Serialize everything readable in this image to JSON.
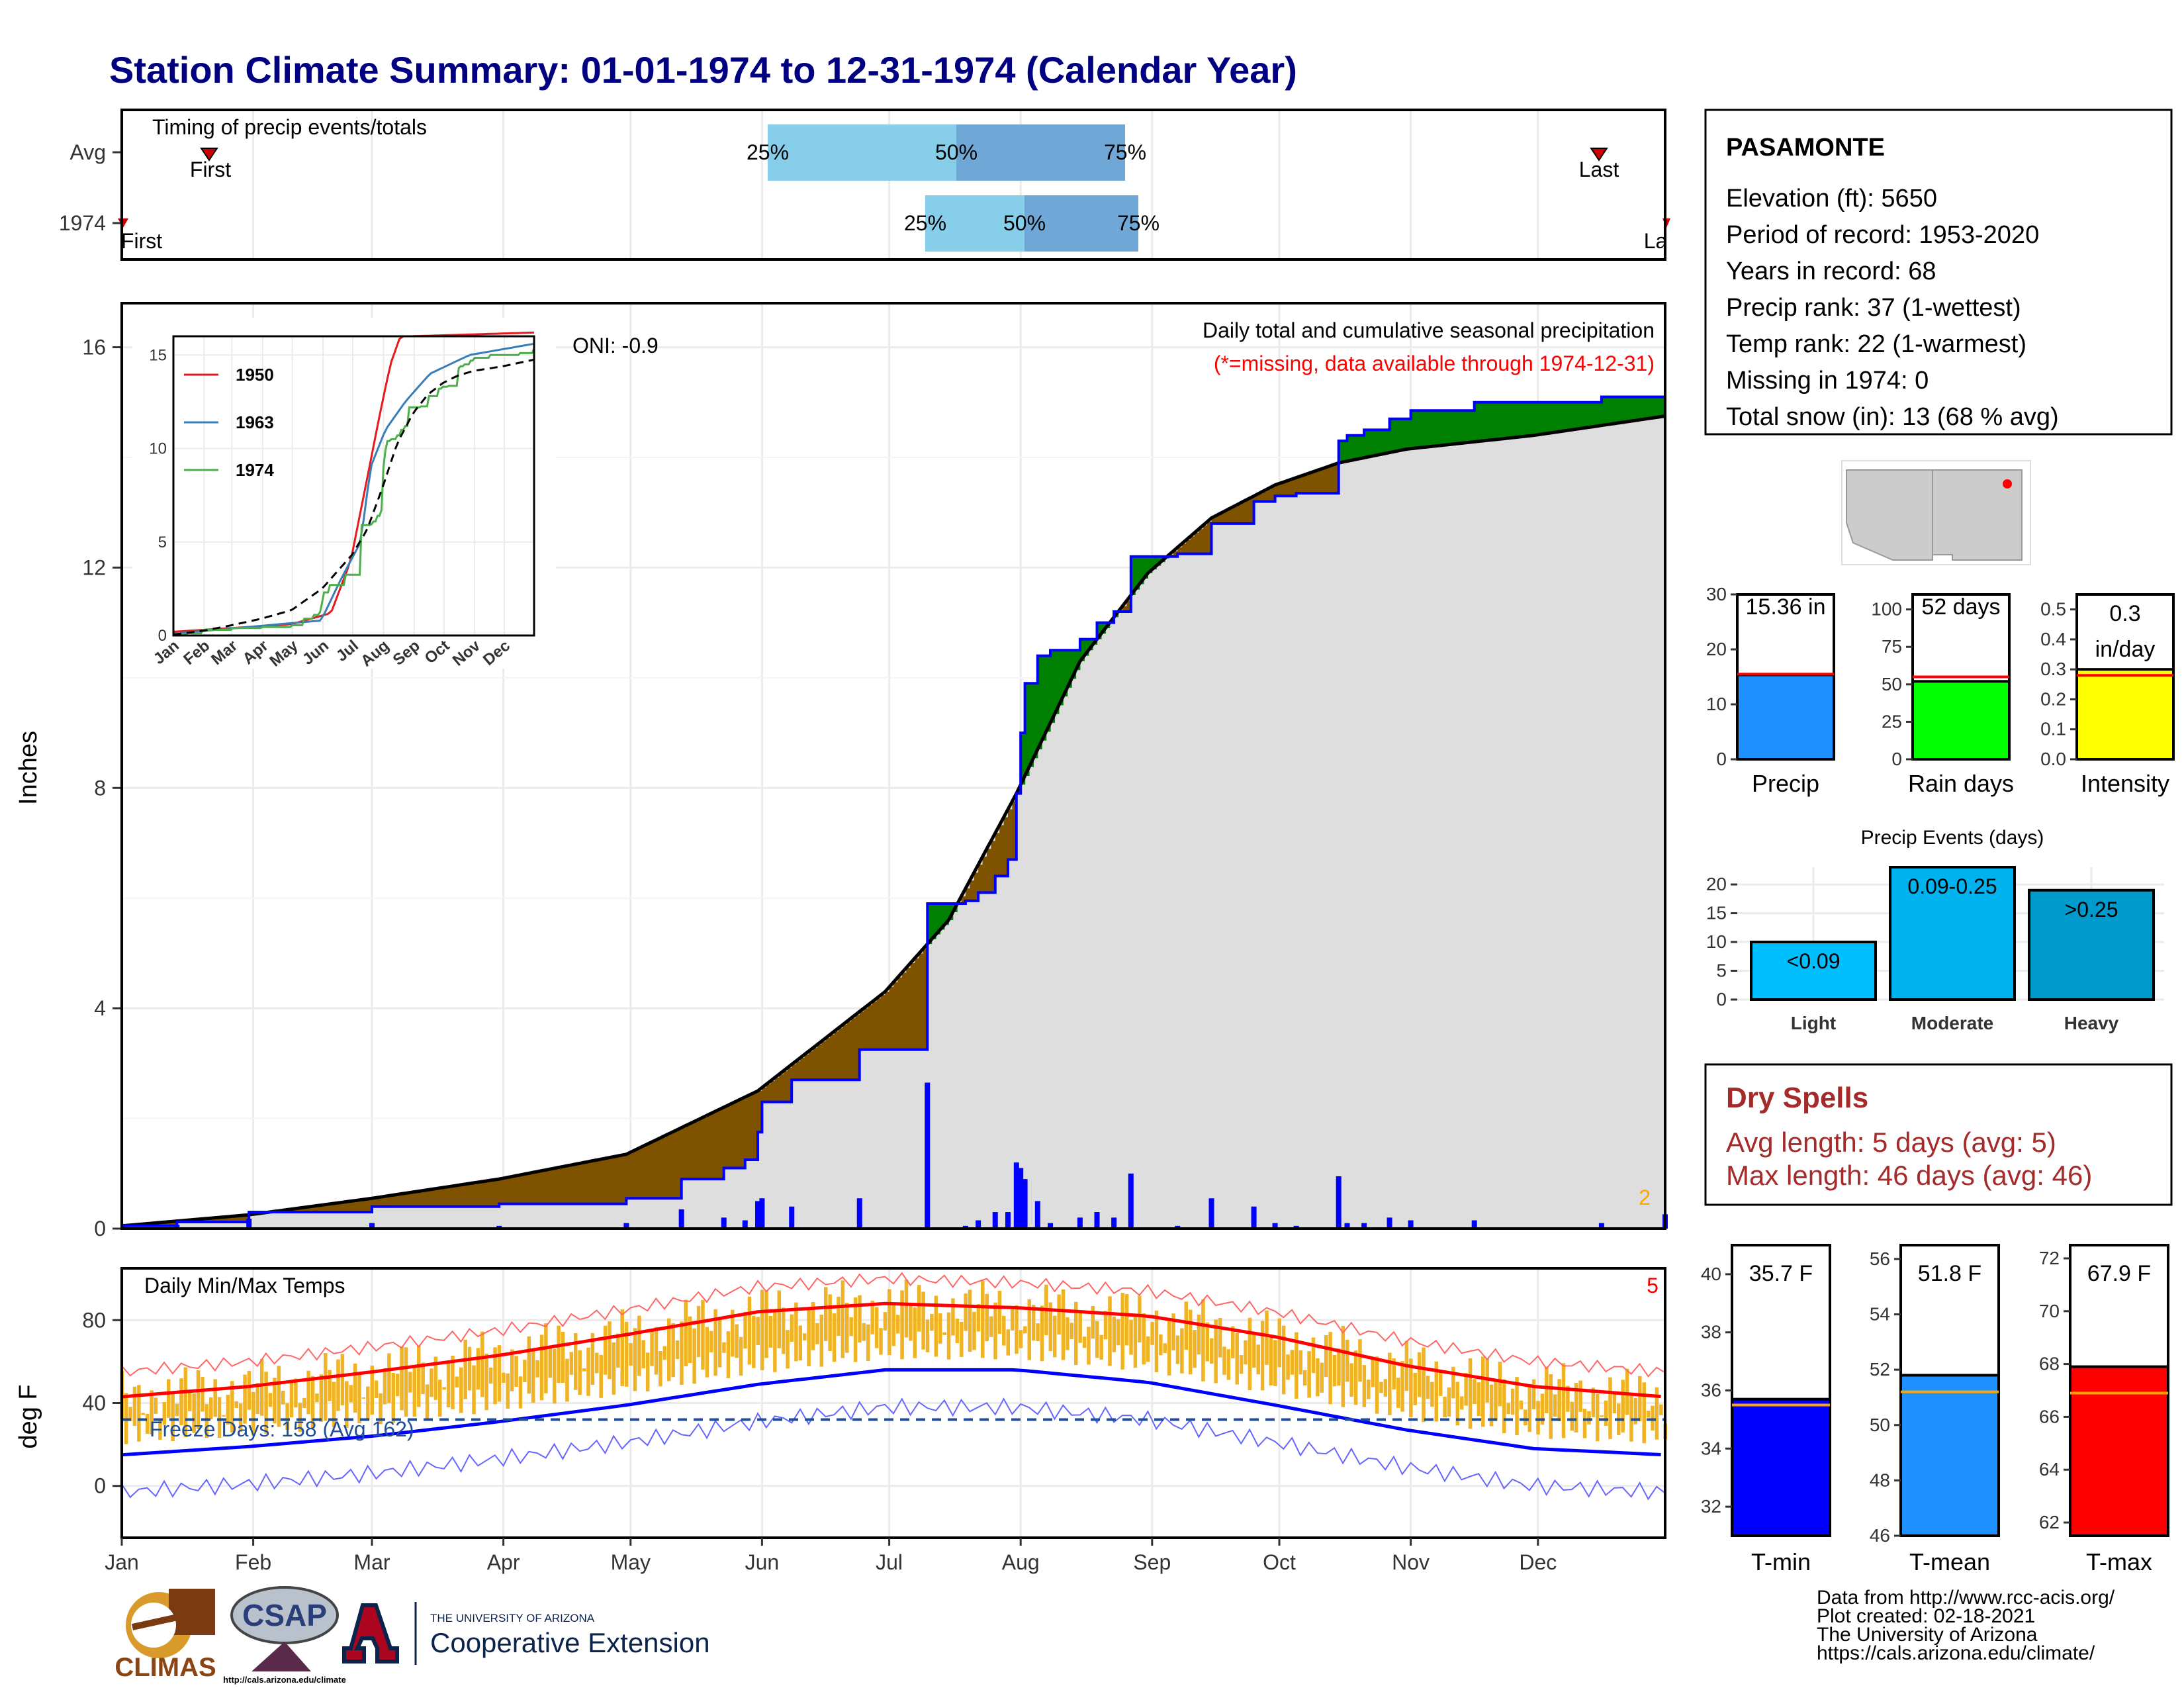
{
  "header": {
    "title": "Station Climate Summary: 01-01-1974 to 12-31-1974 (Calendar Year)"
  },
  "timing": {
    "title": "Timing of precip events/totals",
    "rows": [
      {
        "label": "Avg",
        "first_label": "First",
        "last_label": "Last",
        "p25_label": "25%",
        "p50_label": "50%",
        "p75_label": "75%"
      },
      {
        "label": "1974",
        "first_label": "First",
        "last_label": "Last",
        "p25_label": "25%",
        "p50_label": "50%",
        "p75_label": "75%"
      }
    ]
  },
  "precip_panel": {
    "ylabel": "Inches",
    "note1": "Daily total and cumulative seasonal precipitation",
    "note2": "(*=missing, data available through 1974-12-31)",
    "oni": "ONI: -0.9",
    "snow_count": "2",
    "yticks": [
      "0",
      "4",
      "8",
      "12",
      "16"
    ]
  },
  "inset": {
    "legend": [
      "1950",
      "1963",
      "1974"
    ],
    "yticks": [
      "0",
      "5",
      "10",
      "15"
    ],
    "months": [
      "Jan",
      "Feb",
      "Mar",
      "Apr",
      "May",
      "Jun",
      "Jul",
      "Aug",
      "Sep",
      "Oct",
      "Nov",
      "Dec"
    ]
  },
  "temp_panel": {
    "ylabel": "deg F",
    "title": "Daily Min/Max Temps",
    "freeze": "Freeze Days: 158 (Avg 162)",
    "record_count": "5",
    "yticks": [
      "0",
      "40",
      "80"
    ]
  },
  "months": [
    "Jan",
    "Feb",
    "Mar",
    "Apr",
    "May",
    "Jun",
    "Jul",
    "Aug",
    "Sep",
    "Oct",
    "Nov",
    "Dec"
  ],
  "station": {
    "name": "PASAMONTE",
    "lines": [
      "Elevation (ft): 5650",
      "Period of record: 1953-2020",
      "Years in record: 68",
      "Precip rank: 37 (1-wettest)",
      "Temp rank: 22 (1-warmest)",
      "Missing in 1974: 0",
      "Total snow (in): 13 (68 % avg)"
    ]
  },
  "small_bars": [
    {
      "label": "Precip",
      "value_text": "15.36 in",
      "yticks": [
        "0",
        "10",
        "20",
        "30"
      ],
      "color": "#1e90ff"
    },
    {
      "label": "Rain days",
      "value_text": "52 days",
      "yticks": [
        "0",
        "25",
        "50",
        "75",
        "100"
      ],
      "color": "#00ff00"
    },
    {
      "label": "Intensity",
      "value_text_1": "0.3",
      "value_text_2": "in/day",
      "yticks": [
        "0.0",
        "0.1",
        "0.2",
        "0.3",
        "0.4",
        "0.5"
      ],
      "color": "#ffff00"
    }
  ],
  "events": {
    "title": "Precip Events (days)",
    "yticks": [
      "0",
      "5",
      "10",
      "15",
      "20"
    ],
    "bars": [
      {
        "cat": "Light",
        "label": "<0.09"
      },
      {
        "cat": "Moderate",
        "label": "0.09-0.25"
      },
      {
        "cat": "Heavy",
        "label": ">0.25"
      }
    ]
  },
  "dry_spells": {
    "title": "Dry Spells",
    "avg": "Avg length: 5 days (avg: 5)",
    "max": "Max length: 46 days (avg: 46)"
  },
  "temp_bars": [
    {
      "label": "T-min",
      "value_text": "35.7 F",
      "yticks": [
        "32",
        "34",
        "36",
        "38",
        "40"
      ],
      "color": "#0000ff"
    },
    {
      "label": "T-mean",
      "value_text": "51.8 F",
      "yticks": [
        "46",
        "48",
        "50",
        "52",
        "54",
        "56"
      ],
      "color": "#1e90ff"
    },
    {
      "label": "T-max",
      "value_text": "67.9 F",
      "yticks": [
        "62",
        "64",
        "66",
        "68",
        "70",
        "72"
      ],
      "color": "#ff0000"
    }
  ],
  "footer": {
    "lines": [
      "Data from http://www.rcc-acis.org/",
      "Plot created: 02-18-2021",
      "The University of Arizona",
      "https://cals.arizona.edu/climate/"
    ],
    "logo_climas": "CLIMAS",
    "logo_csap": "CSAP",
    "logo_csap_url": "http://cals.arizona.edu/climate",
    "logo_ua_small": "THE UNIVERSITY OF ARIZONA",
    "logo_ua_big": "Cooperative Extension"
  },
  "chart_data": [
    {
      "type": "area",
      "title": "Daily total and cumulative seasonal precipitation",
      "ylabel": "Inches",
      "ylim": [
        0,
        16.8
      ],
      "x_unit": "day of year 1974",
      "series": [
        {
          "name": "1974 cumulative",
          "x": [
            1,
            14,
            31,
            60,
            90,
            120,
            133,
            143,
            148,
            151,
            152,
            159,
            175,
            182,
            190,
            191,
            200,
            203,
            207,
            210,
            212,
            213,
            214,
            217,
            220,
            227,
            231,
            235,
            239,
            246,
            250,
            258,
            268,
            273,
            278,
            288,
            290,
            294,
            300,
            305,
            310,
            320,
            330,
            340,
            350,
            365
          ],
          "values": [
            0.05,
            0.12,
            0.3,
            0.4,
            0.45,
            0.55,
            0.9,
            1.1,
            1.25,
            1.75,
            2.3,
            2.7,
            3.25,
            3.25,
            3.25,
            5.9,
            5.95,
            6.1,
            6.4,
            6.7,
            7.9,
            9.0,
            9.9,
            10.4,
            10.5,
            10.7,
            11.0,
            11.2,
            12.2,
            12.2,
            12.25,
            12.8,
            13.2,
            13.3,
            13.35,
            14.3,
            14.4,
            14.5,
            14.7,
            14.85,
            14.85,
            15.0,
            15.0,
            15.0,
            15.1,
            15.36
          ]
        },
        {
          "name": "Avg cumulative",
          "x": [
            1,
            31,
            60,
            90,
            120,
            151,
            181,
            196,
            212,
            227,
            243,
            258,
            273,
            288,
            304,
            334,
            365
          ],
          "values": [
            0.05,
            0.25,
            0.55,
            0.9,
            1.35,
            2.5,
            4.3,
            5.6,
            7.9,
            10.3,
            11.9,
            12.9,
            13.5,
            13.9,
            14.15,
            14.4,
            14.75
          ]
        }
      ]
    },
    {
      "type": "line",
      "title": "Daily Min/Max Temps",
      "ylabel": "deg F",
      "ylim": [
        -25,
        105
      ],
      "series": [
        {
          "name": "Avg max",
          "x": [
            1,
            31,
            60,
            90,
            120,
            151,
            181,
            212,
            243,
            273,
            304,
            334,
            365
          ],
          "values": [
            43,
            48,
            55,
            63,
            73,
            84,
            88,
            86,
            82,
            72,
            58,
            48,
            43
          ]
        },
        {
          "name": "Avg min",
          "x": [
            1,
            31,
            60,
            90,
            120,
            151,
            181,
            212,
            243,
            273,
            304,
            334,
            365
          ],
          "values": [
            15,
            19,
            24,
            31,
            39,
            49,
            56,
            56,
            50,
            39,
            27,
            18,
            15
          ]
        },
        {
          "name": "Freeze",
          "x": [
            1,
            365
          ],
          "values": [
            32,
            32
          ]
        }
      ]
    },
    {
      "type": "bar",
      "categories": [
        "Precip"
      ],
      "values": [
        15.36
      ],
      "ylim": [
        0,
        30
      ],
      "average": 15.5
    },
    {
      "type": "bar",
      "categories": [
        "Rain days"
      ],
      "values": [
        52
      ],
      "ylim": [
        0,
        110
      ],
      "average": 55
    },
    {
      "type": "bar",
      "categories": [
        "Intensity"
      ],
      "values": [
        0.3
      ],
      "ylim": [
        0,
        0.55
      ],
      "average": 0.28
    },
    {
      "type": "bar",
      "title": "Precip Events (days)",
      "categories": [
        "Light",
        "Moderate",
        "Heavy"
      ],
      "values": [
        10,
        23,
        19
      ],
      "ylim": [
        0,
        23
      ]
    },
    {
      "type": "bar",
      "categories": [
        "T-min"
      ],
      "values": [
        35.7
      ],
      "ylim": [
        31,
        41
      ],
      "average": 35.5
    },
    {
      "type": "bar",
      "categories": [
        "T-mean"
      ],
      "values": [
        51.8
      ],
      "ylim": [
        46,
        56.5
      ],
      "average": 51.2
    },
    {
      "type": "bar",
      "categories": [
        "T-max"
      ],
      "values": [
        67.9
      ],
      "ylim": [
        61.5,
        72.5
      ],
      "average": 66.9
    }
  ]
}
